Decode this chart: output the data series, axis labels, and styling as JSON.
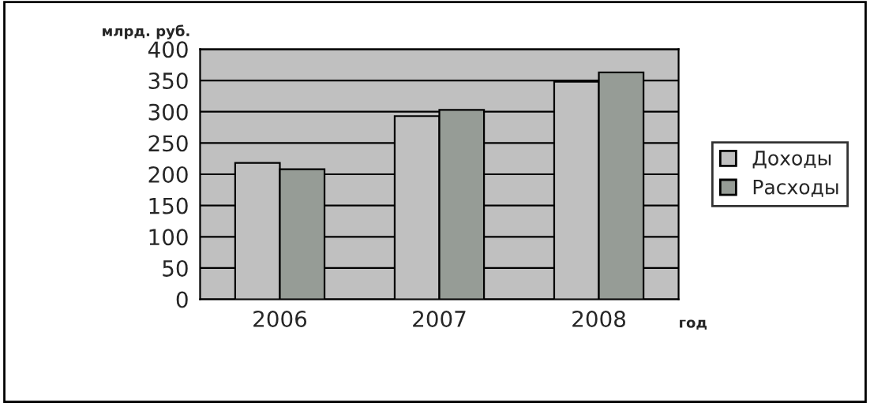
{
  "chart_data": {
    "type": "bar",
    "xlabel": "год",
    "ylabel": "млрд. руб.",
    "categories": [
      "2006",
      "2007",
      "2008"
    ],
    "series": [
      {
        "name": "Доходы",
        "color": "#c0c0c0",
        "values": [
          218,
          293,
          348
        ]
      },
      {
        "name": "Расходы",
        "color": "#969c96",
        "values": [
          208,
          303,
          363
        ]
      }
    ],
    "ylim": [
      0,
      400
    ],
    "yticks": [
      0,
      50,
      100,
      150,
      200,
      250,
      300,
      350,
      400
    ],
    "grid": "y",
    "legend": "right"
  }
}
